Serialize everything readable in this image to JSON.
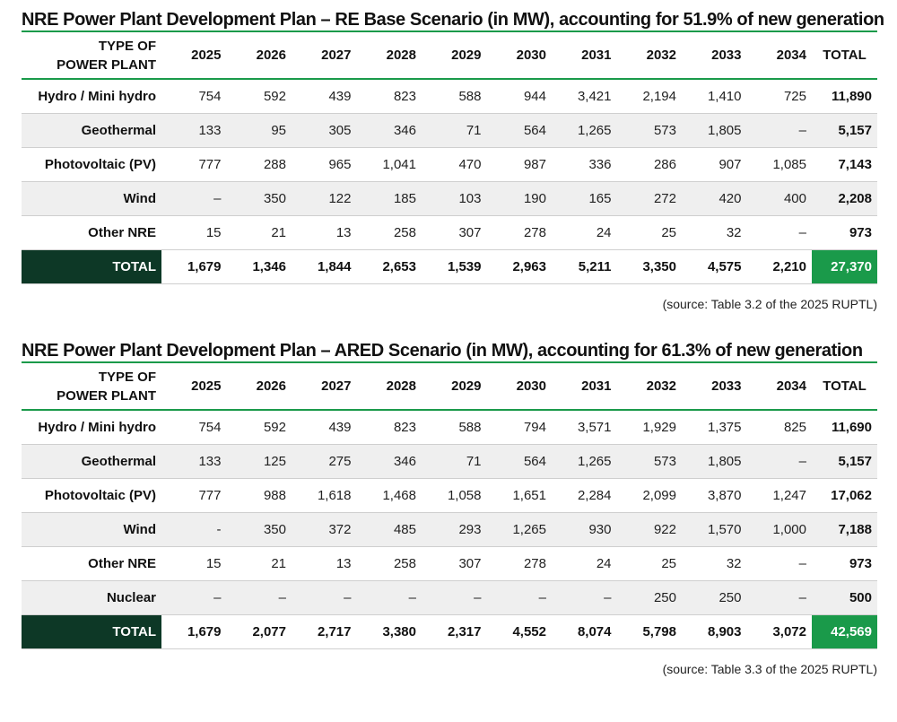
{
  "colors": {
    "accent_green": "#1a9a4a",
    "dark_green": "#0d3826",
    "row_shade": "#efefef"
  },
  "table1": {
    "title": "NRE Power Plant Development Plan – RE Base Scenario (in MW), accounting for 51.9% of new generation",
    "header": {
      "type_line1": "TYPE OF",
      "type_line2": "POWER PLANT",
      "years": [
        "2025",
        "2026",
        "2027",
        "2028",
        "2029",
        "2030",
        "2031",
        "2032",
        "2033",
        "2034"
      ],
      "total": "TOTAL"
    },
    "rows": [
      {
        "label": "Hydro / Mini hydro",
        "values": [
          "754",
          "592",
          "439",
          "823",
          "588",
          "944",
          "3,421",
          "2,194",
          "1,410",
          "725"
        ],
        "total": "11,890"
      },
      {
        "label": "Geothermal",
        "values": [
          "133",
          "95",
          "305",
          "346",
          "71",
          "564",
          "1,265",
          "573",
          "1,805",
          "–"
        ],
        "total": "5,157"
      },
      {
        "label": "Photovoltaic (PV)",
        "values": [
          "777",
          "288",
          "965",
          "1,041",
          "470",
          "987",
          "336",
          "286",
          "907",
          "1,085"
        ],
        "total": "7,143"
      },
      {
        "label": "Wind",
        "values": [
          "–",
          "350",
          "122",
          "185",
          "103",
          "190",
          "165",
          "272",
          "420",
          "400"
        ],
        "total": "2,208"
      },
      {
        "label": "Other NRE",
        "values": [
          "15",
          "21",
          "13",
          "258",
          "307",
          "278",
          "24",
          "25",
          "32",
          "–"
        ],
        "total": "973"
      }
    ],
    "grand": {
      "label": "TOTAL",
      "values": [
        "1,679",
        "1,346",
        "1,844",
        "2,653",
        "1,539",
        "2,963",
        "5,211",
        "3,350",
        "4,575",
        "2,210"
      ],
      "total": "27,370"
    },
    "source": "(source: Table 3.2 of the 2025 RUPTL)"
  },
  "table2": {
    "title": "NRE Power Plant Development Plan – ARED Scenario (in MW), accounting for 61.3% of new generation",
    "header": {
      "type_line1": "TYPE OF",
      "type_line2": "POWER PLANT",
      "years": [
        "2025",
        "2026",
        "2027",
        "2028",
        "2029",
        "2030",
        "2031",
        "2032",
        "2033",
        "2034"
      ],
      "total": "TOTAL"
    },
    "rows": [
      {
        "label": "Hydro / Mini hydro",
        "values": [
          "754",
          "592",
          "439",
          "823",
          "588",
          "794",
          "3,571",
          "1,929",
          "1,375",
          "825"
        ],
        "total": "11,690"
      },
      {
        "label": "Geothermal",
        "values": [
          "133",
          "125",
          "275",
          "346",
          "71",
          "564",
          "1,265",
          "573",
          "1,805",
          "–"
        ],
        "total": "5,157"
      },
      {
        "label": "Photovoltaic (PV)",
        "values": [
          "777",
          "988",
          "1,618",
          "1,468",
          "1,058",
          "1,651",
          "2,284",
          "2,099",
          "3,870",
          "1,247"
        ],
        "total": "17,062"
      },
      {
        "label": "Wind",
        "values": [
          "-",
          "350",
          "372",
          "485",
          "293",
          "1,265",
          "930",
          "922",
          "1,570",
          "1,000"
        ],
        "total": "7,188"
      },
      {
        "label": "Other NRE",
        "values": [
          "15",
          "21",
          "13",
          "258",
          "307",
          "278",
          "24",
          "25",
          "32",
          "–"
        ],
        "total": "973"
      },
      {
        "label": "Nuclear",
        "values": [
          "–",
          "–",
          "–",
          "–",
          "–",
          "–",
          "–",
          "250",
          "250",
          "–"
        ],
        "total": "500"
      }
    ],
    "grand": {
      "label": "TOTAL",
      "values": [
        "1,679",
        "2,077",
        "2,717",
        "3,380",
        "2,317",
        "4,552",
        "8,074",
        "5,798",
        "8,903",
        "3,072"
      ],
      "total": "42,569"
    },
    "source": "(source: Table 3.3 of the 2025 RUPTL)"
  }
}
